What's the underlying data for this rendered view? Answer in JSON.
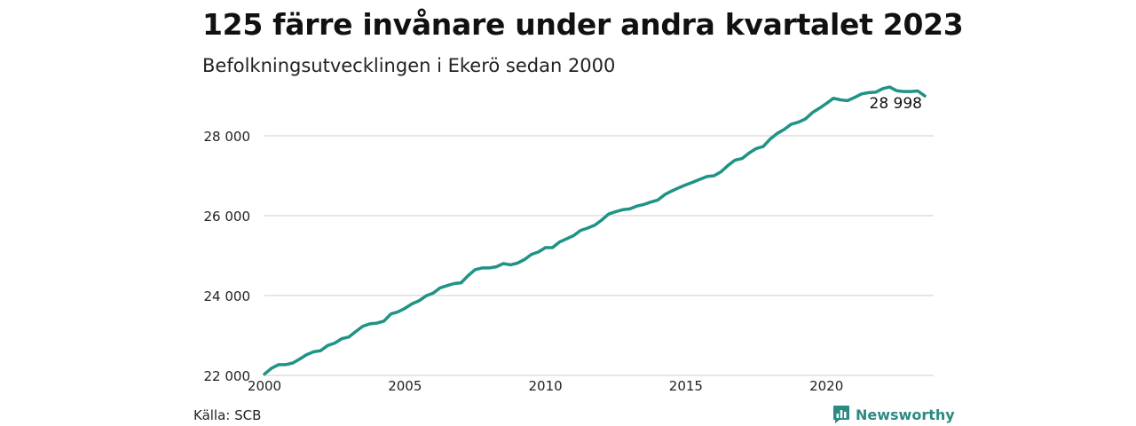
{
  "header": {
    "title": "125 färre invånare under andra kvartalet 2023",
    "subtitle": "Befolkningsutvecklingen i Ekerö sedan 2000"
  },
  "footer": {
    "source": "Källa: SCB",
    "brand": "Newsworthy",
    "brand_icon": "bar-chart-logo-icon"
  },
  "colors": {
    "line": "#1f9385",
    "grid": "#dddddd",
    "brand": "#2b8a82"
  },
  "chart_data": {
    "type": "line",
    "title": "125 färre invånare under andra kvartalet 2023",
    "subtitle": "Befolkningsutvecklingen i Ekerö sedan 2000",
    "xlabel": "",
    "ylabel": "",
    "xlim": [
      2000,
      2023.5
    ],
    "ylim": [
      21800,
      29400
    ],
    "x_ticks": [
      2000,
      2005,
      2010,
      2015,
      2020
    ],
    "x_tick_labels": [
      "2000",
      "2005",
      "2010",
      "2015",
      "2020"
    ],
    "y_ticks": [
      22000,
      24000,
      26000,
      28000
    ],
    "y_tick_labels": [
      "22 000",
      "24 000",
      "26 000",
      "28 000"
    ],
    "grid": "horizontal",
    "end_label": "28 998",
    "series": [
      {
        "x": [
          2000.0,
          2000.25,
          2000.5,
          2000.75,
          2001.0,
          2001.25,
          2001.5,
          2001.75,
          2002.0,
          2002.25,
          2002.5,
          2002.75,
          2003.0,
          2003.25,
          2003.5,
          2003.75,
          2004.0,
          2004.25,
          2004.5,
          2004.75,
          2005.0,
          2005.25,
          2005.5,
          2005.75,
          2006.0,
          2006.25,
          2006.5,
          2006.75,
          2007.0,
          2007.25,
          2007.5,
          2007.75,
          2008.0,
          2008.25,
          2008.5,
          2008.75,
          2009.0,
          2009.25,
          2009.5,
          2009.75,
          2010.0,
          2010.25,
          2010.5,
          2010.75,
          2011.0,
          2011.25,
          2011.5,
          2011.75,
          2012.0,
          2012.25,
          2012.5,
          2012.75,
          2013.0,
          2013.25,
          2013.5,
          2013.75,
          2014.0,
          2014.25,
          2014.5,
          2014.75,
          2015.0,
          2015.25,
          2015.5,
          2015.75,
          2016.0,
          2016.25,
          2016.5,
          2016.75,
          2017.0,
          2017.25,
          2017.5,
          2017.75,
          2018.0,
          2018.25,
          2018.5,
          2018.75,
          2019.0,
          2019.25,
          2019.5,
          2019.75,
          2020.0,
          2020.25,
          2020.5,
          2020.75,
          2021.0,
          2021.25,
          2021.5,
          2021.75,
          2022.0,
          2022.25,
          2022.5,
          2022.75,
          2023.0,
          2023.25,
          2023.5
        ],
        "values": [
          22030,
          22180,
          22270,
          22270,
          22310,
          22410,
          22520,
          22590,
          22620,
          22750,
          22810,
          22920,
          22960,
          23100,
          23230,
          23290,
          23310,
          23360,
          23540,
          23590,
          23680,
          23790,
          23870,
          23990,
          24060,
          24190,
          24250,
          24300,
          24320,
          24500,
          24650,
          24690,
          24690,
          24720,
          24800,
          24770,
          24810,
          24900,
          25030,
          25090,
          25200,
          25200,
          25340,
          25420,
          25500,
          25630,
          25690,
          25760,
          25890,
          26040,
          26100,
          26150,
          26170,
          26240,
          26280,
          26340,
          26390,
          26530,
          26620,
          26700,
          26770,
          26840,
          26910,
          26980,
          27000,
          27100,
          27260,
          27390,
          27430,
          27570,
          27680,
          27730,
          27920,
          28060,
          28160,
          28290,
          28340,
          28420,
          28580,
          28690,
          28810,
          28940,
          28900,
          28880,
          28960,
          29050,
          29080,
          29090,
          29180,
          29220,
          29130,
          29110,
          29110,
          29123,
          28998
        ]
      }
    ]
  }
}
